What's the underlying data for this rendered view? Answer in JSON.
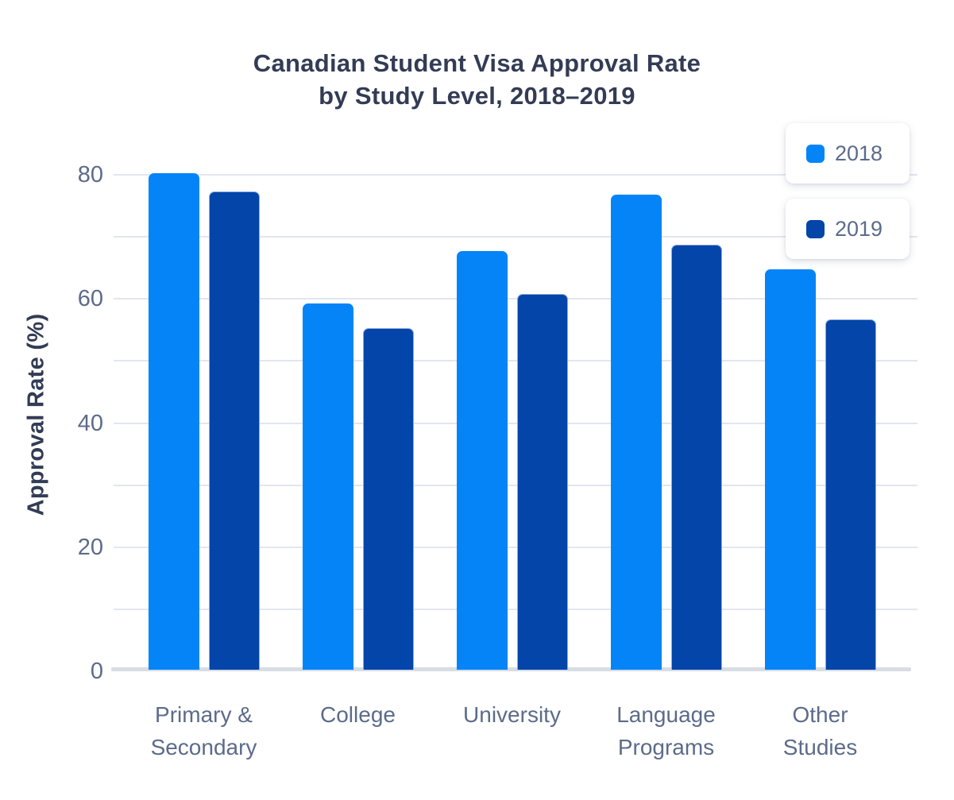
{
  "title": "Canadian Student Visa Approval Rate\nby Study Level, 2018–2019",
  "y_axis": {
    "label": "Approval Rate (%)",
    "ticks": [
      0,
      20,
      40,
      60,
      80
    ]
  },
  "legend": [
    {
      "label": "2018",
      "color": "#0584F8"
    },
    {
      "label": "2019",
      "color": "#0345A9"
    }
  ],
  "colors": {
    "series_2018": "#0584F8",
    "series_2019": "#0345A9",
    "gridline": "#E2E6EE",
    "axis_line": "#D8DCE4",
    "title_text": "#333C55",
    "tick_text": "#5C6B8A"
  },
  "chart_data": {
    "type": "bar",
    "title": "Canadian Student Visa Approval Rate by Study Level, 2018–2019",
    "xlabel": "",
    "ylabel": "Approval Rate (%)",
    "categories": [
      "Primary &\nSecondary",
      "College",
      "University",
      "Language\nPrograms",
      "Other\nStudies"
    ],
    "series": [
      {
        "name": "2018",
        "color": "#0584F8",
        "values": [
          80,
          59,
          67.5,
          76.5,
          64.5
        ]
      },
      {
        "name": "2019",
        "color": "#0345A9",
        "values": [
          77,
          55,
          60.5,
          68.5,
          56.5
        ]
      }
    ],
    "ylim": [
      0,
      80
    ],
    "grid_step": 10,
    "grid": "horizontal",
    "legend_position": "top-right"
  }
}
